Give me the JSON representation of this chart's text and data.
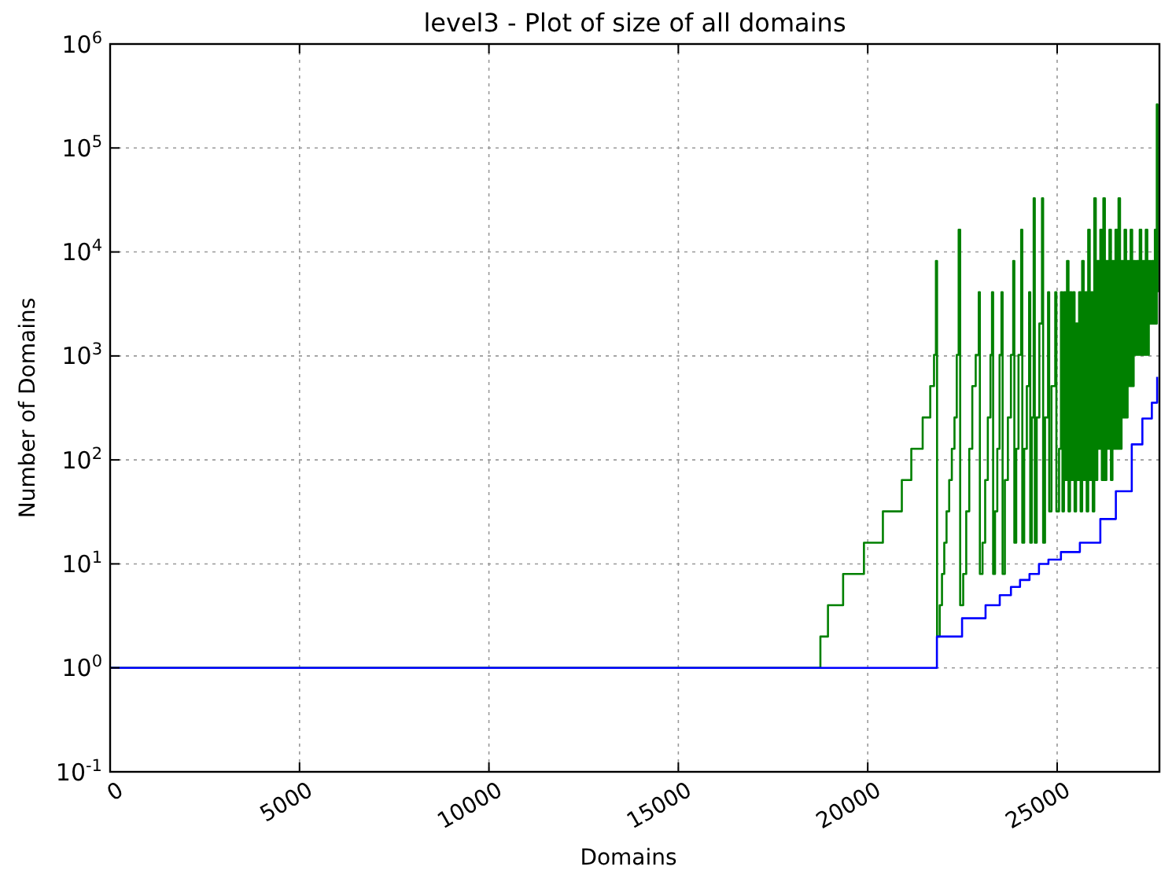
{
  "chart_data": {
    "type": "step",
    "title": "level3 - Plot of size of all domains",
    "xlabel": "Domains",
    "ylabel": "Number of Domains",
    "log": "y",
    "grid": true,
    "marker": "none",
    "line_style": "solid",
    "xlim": [
      0,
      27700
    ],
    "xticks": [
      0,
      5000,
      10000,
      15000,
      20000,
      25000
    ],
    "ylim": [
      0.1,
      1000000
    ],
    "yticks": [
      {
        "value": 0.1,
        "label": "10$^{-1}$"
      },
      {
        "value": 1,
        "label": "10$^{0}$"
      },
      {
        "value": 10,
        "label": "10$^{1}$"
      },
      {
        "value": 100,
        "label": "10$^{2}$"
      },
      {
        "value": 1000,
        "label": "10$^{3}$"
      },
      {
        "value": 10000,
        "label": "10$^{4}$"
      },
      {
        "value": 100000,
        "label": "10$^{5}$"
      },
      {
        "value": 1000000,
        "label": "10$^{6}$"
      }
    ],
    "series": [
      {
        "color": "#008000",
        "x": [
          0,
          18750,
          18950,
          19350,
          19900,
          20400,
          20900,
          21150,
          21450,
          21650,
          21750,
          21800,
          21830,
          21900,
          21960,
          22020,
          22080,
          22150,
          22220,
          22290,
          22350,
          22400,
          22440,
          22520,
          22600,
          22680,
          22760,
          22850,
          22930,
          22960,
          23030,
          23100,
          23170,
          23240,
          23280,
          23310,
          23360,
          23420,
          23480,
          23530,
          23560,
          23620,
          23700,
          23780,
          23840,
          23870,
          23920,
          23980,
          24050,
          24080,
          24130,
          24200,
          24260,
          24290,
          24330,
          24380,
          24410,
          24460,
          24530,
          24600,
          24630,
          24680,
          24760,
          24790,
          24850,
          24950,
          24980,
          25050,
          25100,
          25140,
          25180,
          25220,
          25260,
          25300,
          25340,
          25380,
          25420,
          25460,
          25500,
          25540,
          25580,
          25620,
          25660,
          25700,
          25740,
          25780,
          25820,
          25860,
          25900,
          25940,
          25980,
          26020,
          26060,
          26100,
          26140,
          26180,
          26220,
          26260,
          26300,
          26340,
          26380,
          26420,
          26460,
          26500,
          26540,
          26580,
          26620,
          26660,
          26700,
          26740,
          26780,
          26820,
          26860,
          26900,
          26940,
          26980,
          27020,
          27060,
          27100,
          27140,
          27180,
          27220,
          27260,
          27300,
          27340,
          27380,
          27420,
          27460,
          27500,
          27540,
          27580,
          27610,
          27630,
          27650
        ],
        "values": [
          1,
          2,
          4,
          8,
          16,
          32,
          64,
          128,
          256,
          512,
          1024,
          8192,
          2,
          4,
          8,
          16,
          32,
          64,
          128,
          256,
          1024,
          16384,
          4,
          8,
          32,
          128,
          512,
          1024,
          4096,
          8,
          16,
          64,
          256,
          1024,
          4096,
          8,
          32,
          128,
          1024,
          4096,
          8,
          64,
          256,
          1024,
          8192,
          16,
          128,
          1024,
          16384,
          16,
          128,
          512,
          4096,
          16,
          256,
          32768,
          16,
          256,
          2048,
          32768,
          16,
          256,
          4096,
          32,
          512,
          4096,
          32,
          128,
          4096,
          32,
          4096,
          64,
          8192,
          32,
          4096,
          64,
          4096,
          32,
          2048,
          64,
          4096,
          32,
          8192,
          64,
          4096,
          32,
          16384,
          64,
          4096,
          32,
          32768,
          64,
          8192,
          128,
          16384,
          64,
          32768,
          64,
          8192,
          128,
          16384,
          64,
          8192,
          128,
          16384,
          128,
          32768,
          128,
          8192,
          256,
          16384,
          256,
          8192,
          512,
          16384,
          512,
          8192,
          1024,
          8192,
          1024,
          16384,
          1024,
          8192,
          1024,
          16384,
          1024,
          8192,
          2048,
          8192,
          2048,
          16384,
          2048,
          262144,
          4096
        ]
      },
      {
        "color": "#0000ff",
        "x": [
          0,
          21826,
          22490,
          23110,
          23485,
          23780,
          24020,
          24270,
          24520,
          24770,
          25100,
          25600,
          26140,
          26550,
          26970,
          27250,
          27500,
          27640
        ],
        "values": [
          1,
          2,
          3,
          4,
          5,
          6,
          7,
          8,
          10,
          11,
          13,
          16,
          27,
          50,
          141,
          250,
          355,
          630
        ]
      }
    ]
  }
}
